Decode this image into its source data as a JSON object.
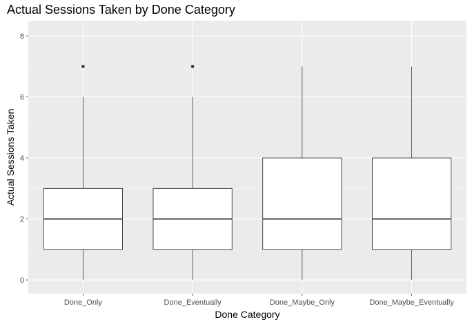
{
  "chart_data": {
    "type": "boxplot",
    "title": "Actual Sessions Taken by Done Category",
    "xlabel": "Done Category",
    "ylabel": "Actual Sessions Taken",
    "ylim": [
      -0.45,
      8.5
    ],
    "yticks": [
      0,
      2,
      4,
      6,
      8
    ],
    "yticks_labels": [
      "0",
      "2",
      "4",
      "6",
      "8"
    ],
    "grid": true,
    "categories": [
      "Done_Only",
      "Done_Eventually",
      "Done_Maybe_Only",
      "Done_Maybe_Eventually"
    ],
    "boxes": [
      {
        "category": "Done_Only",
        "whisker_low": 0,
        "q1": 1,
        "median": 2,
        "q3": 3,
        "whisker_high": 6,
        "outliers": [
          7
        ]
      },
      {
        "category": "Done_Eventually",
        "whisker_low": 0,
        "q1": 1,
        "median": 2,
        "q3": 3,
        "whisker_high": 6,
        "outliers": [
          7
        ]
      },
      {
        "category": "Done_Maybe_Only",
        "whisker_low": 0,
        "q1": 1,
        "median": 2,
        "q3": 4,
        "whisker_high": 7,
        "outliers": []
      },
      {
        "category": "Done_Maybe_Eventually",
        "whisker_low": 0,
        "q1": 1,
        "median": 2,
        "q3": 4,
        "whisker_high": 7,
        "outliers": []
      }
    ],
    "colors": {
      "panel": "#ebebeb",
      "grid_major": "#ffffff",
      "box_fill": "#ffffff",
      "box_stroke": "#333333",
      "outlier": "#333333"
    }
  }
}
